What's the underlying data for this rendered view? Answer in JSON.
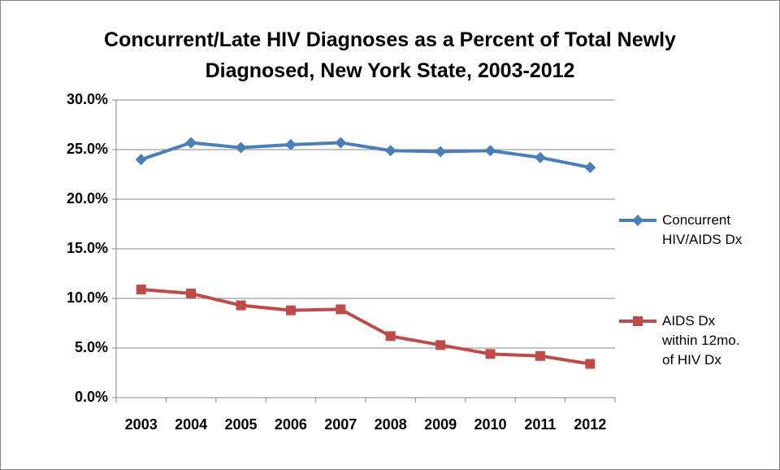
{
  "chart_data": {
    "type": "line",
    "title": "Concurrent/Late HIV Diagnoses as a Percent of Total Newly Diagnosed, New York State, 2003-2012",
    "categories": [
      "2003",
      "2004",
      "2005",
      "2006",
      "2007",
      "2008",
      "2009",
      "2010",
      "2011",
      "2012"
    ],
    "series": [
      {
        "name": "Concurrent HIV/AIDS Dx",
        "color": "#4a7ebb",
        "marker": "diamond",
        "values": [
          24.0,
          25.7,
          25.2,
          25.5,
          25.7,
          24.9,
          24.8,
          24.9,
          24.2,
          23.2
        ]
      },
      {
        "name": "AIDS Dx within 12mo. of HIV Dx",
        "color": "#be4b48",
        "marker": "square",
        "values": [
          10.9,
          10.5,
          9.3,
          8.8,
          8.9,
          6.2,
          5.3,
          4.4,
          4.2,
          3.4
        ]
      }
    ],
    "ylim": [
      0,
      30
    ],
    "yticks": [
      {
        "value": 0,
        "label": "0.0%"
      },
      {
        "value": 5,
        "label": "5.0%"
      },
      {
        "value": 10,
        "label": "10.0%"
      },
      {
        "value": 15,
        "label": "15.0%"
      },
      {
        "value": 20,
        "label": "20.0%"
      },
      {
        "value": 25,
        "label": "25.0%"
      },
      {
        "value": 30,
        "label": "30.0%"
      }
    ],
    "grid": true,
    "legend": "right"
  }
}
